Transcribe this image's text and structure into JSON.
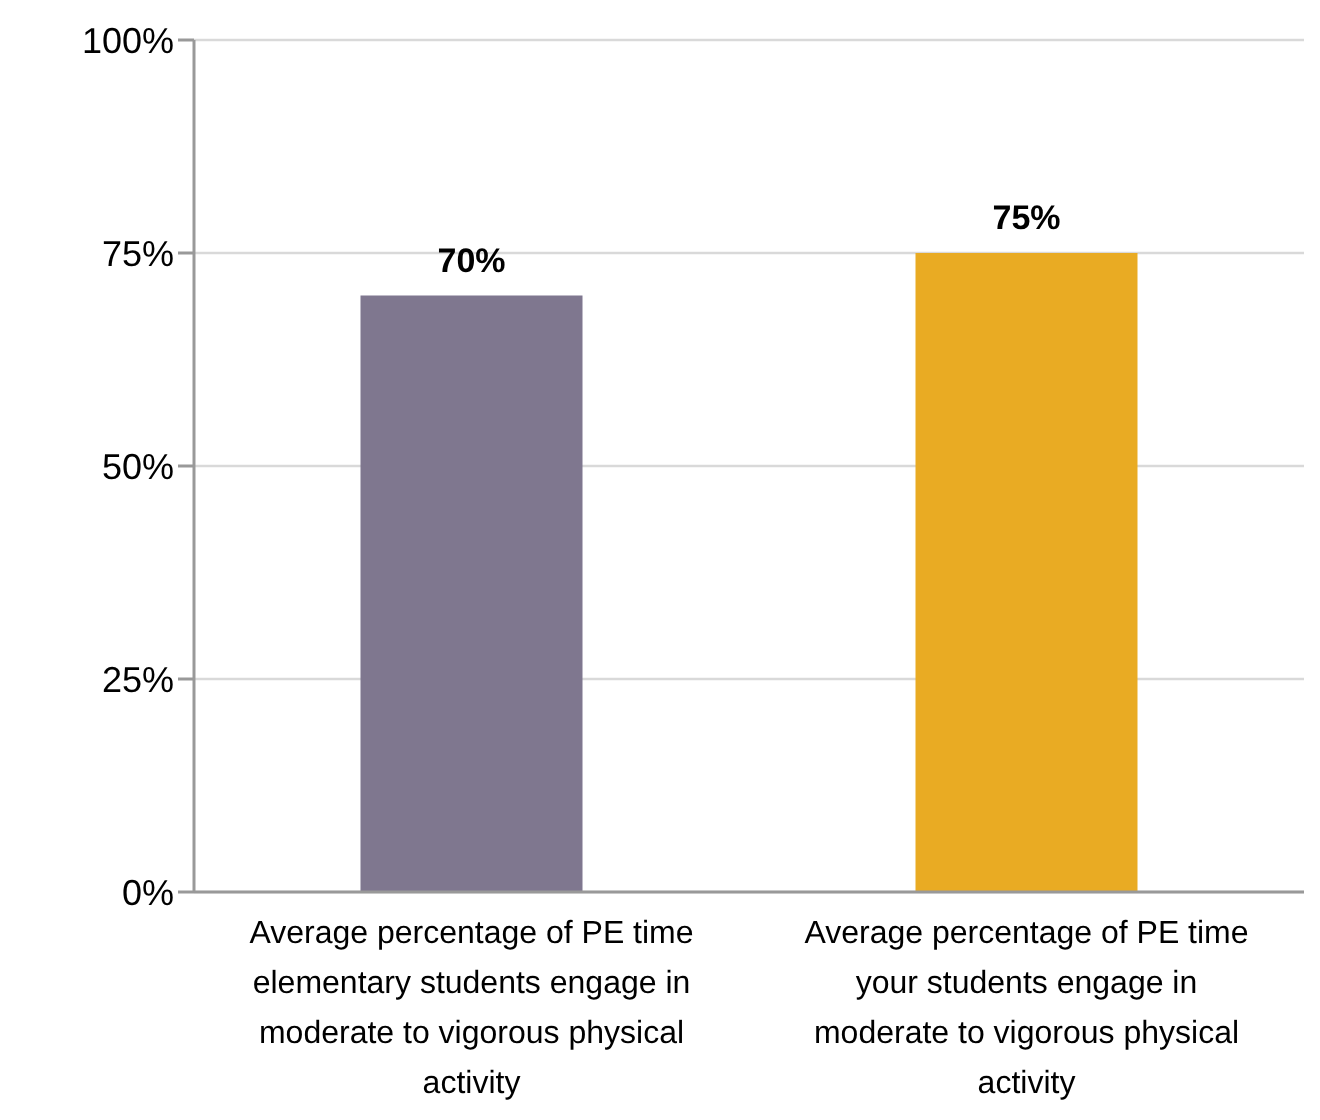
{
  "chart_data": {
    "type": "bar",
    "categories": [
      "Average percentage of PE time elementary students engage in moderate to vigorous physical activity",
      "Average percentage of PE time your students engage in moderate to vigorous physical activity"
    ],
    "values": [
      70,
      75
    ],
    "colors": [
      "#7f778f",
      "#e9ab23"
    ],
    "value_labels": [
      "70%",
      "75%"
    ],
    "ylim": [
      0,
      100
    ],
    "yticks": [
      {
        "value": 0,
        "label": "0%"
      },
      {
        "value": 25,
        "label": "25%"
      },
      {
        "value": 50,
        "label": "50%"
      },
      {
        "value": 75,
        "label": "75%"
      },
      {
        "value": 100,
        "label": "100%"
      }
    ],
    "grid": "y"
  }
}
